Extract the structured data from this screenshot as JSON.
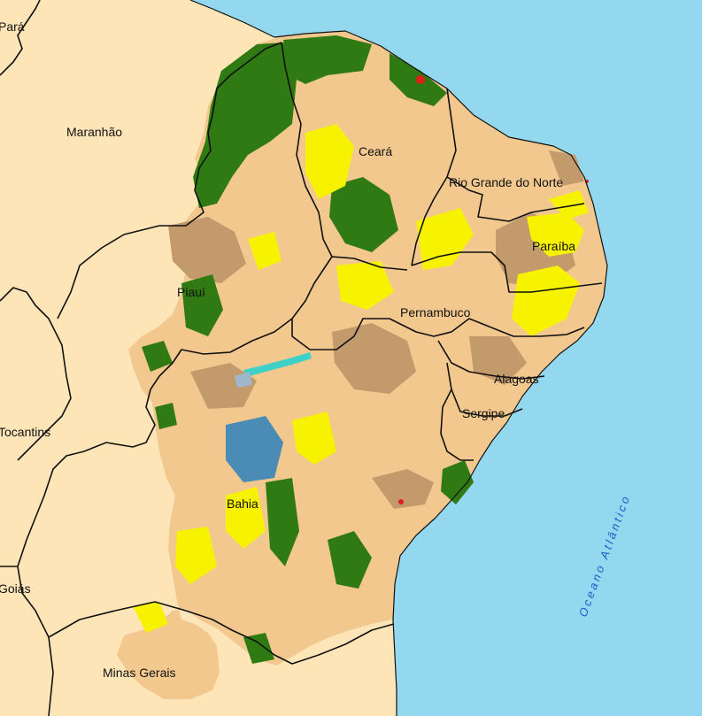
{
  "map": {
    "colors": {
      "ocean": "#94d8f0",
      "land": "#fde5b8",
      "caatinga_light": "#f2c88f",
      "caatinga_dark": "#c29a6c",
      "forest": "#2f7a12",
      "agriculture": "#f7f200",
      "water": "#4a8cb5",
      "urban": "#e0201a",
      "border": "#111111"
    },
    "states": {
      "para": "Pará",
      "maranhao": "Maranhão",
      "ceara": "Ceará",
      "rio_grande_do_norte": "Rio Grande do Norte",
      "paraiba": "Paraíba",
      "piaui": "Piauí",
      "pernambuco": "Pernambuco",
      "alagoas": "Alagoas",
      "sergipe": "Sergipe",
      "tocantins": "Tocantins",
      "bahia": "Bahia",
      "goias": "Goiás",
      "minas_gerais": "Minas Gerais"
    },
    "ocean_label": "Oceano Atlântico"
  }
}
